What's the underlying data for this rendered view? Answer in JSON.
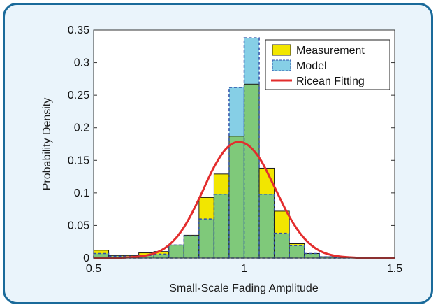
{
  "chart_data": {
    "type": "bar",
    "xlabel": "Small-Scale Fading Amplitude",
    "ylabel": "Probability Density",
    "xlim": [
      0.5,
      1.5
    ],
    "ylim": [
      0,
      0.35
    ],
    "xticks": [
      "0.5",
      "1",
      "1.5"
    ],
    "yticks": [
      "0",
      "0.05",
      "0.1",
      "0.15",
      "0.2",
      "0.25",
      "0.3",
      "0.35"
    ],
    "grid": false,
    "legend_position": "top-right",
    "bin_edges": [
      0.5,
      0.55,
      0.6,
      0.65,
      0.7,
      0.75,
      0.8,
      0.85,
      0.9,
      0.95,
      1.0,
      1.05,
      1.1,
      1.15,
      1.2,
      1.25,
      1.3,
      1.35,
      1.4,
      1.45,
      1.5
    ],
    "series": [
      {
        "name": "Measurement",
        "type": "histogram",
        "color": "#f2e600",
        "values": [
          0.012,
          0.004,
          0.004,
          0.008,
          0.01,
          0.02,
          0.035,
          0.093,
          0.129,
          0.187,
          0.267,
          0.138,
          0.072,
          0.022,
          0.007,
          0.002,
          0,
          0,
          0,
          0
        ]
      },
      {
        "name": "Model",
        "type": "histogram",
        "color": "#86cfe6",
        "values": [
          0.007,
          0.003,
          0.003,
          0.004,
          0.006,
          0.02,
          0.034,
          0.06,
          0.098,
          0.262,
          0.338,
          0.098,
          0.038,
          0.019,
          0.007,
          0.002,
          0.001,
          0,
          0,
          0
        ]
      },
      {
        "name": "Ricean Fitting",
        "type": "line",
        "color": "#e32d2d",
        "x": [
          0.5,
          0.55,
          0.6,
          0.65,
          0.7,
          0.75,
          0.8,
          0.85,
          0.9,
          0.95,
          1.0,
          1.05,
          1.1,
          1.15,
          1.2,
          1.25,
          1.3,
          1.35,
          1.4,
          1.45,
          1.5
        ],
        "y": [
          0,
          0,
          0.0005,
          0.002,
          0.006,
          0.018,
          0.045,
          0.09,
          0.142,
          0.176,
          0.18,
          0.157,
          0.11,
          0.062,
          0.028,
          0.01,
          0.003,
          0.001,
          0,
          0,
          0
        ]
      }
    ],
    "overlap_color": "#7fc97a"
  }
}
